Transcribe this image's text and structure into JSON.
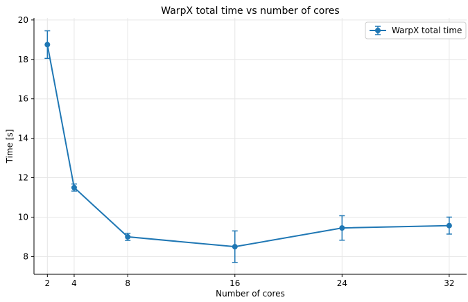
{
  "chart_data": {
    "type": "line",
    "title": "WarpX total time vs number of cores",
    "xlabel": "Number of cores",
    "ylabel": "Time [s]",
    "x": [
      2,
      4,
      8,
      16,
      24,
      32
    ],
    "xlim": [
      1,
      33.3
    ],
    "ylim": [
      7.1,
      20.1
    ],
    "x_ticks": [
      2,
      4,
      8,
      16,
      24,
      32
    ],
    "y_ticks": [
      8,
      10,
      12,
      14,
      16,
      18,
      20
    ],
    "grid": true,
    "legend_position": "top-right",
    "series": [
      {
        "name": "WarpX total time",
        "color": "#1f77b4",
        "y": [
          18.75,
          11.5,
          9.0,
          8.5,
          9.45,
          9.57
        ],
        "yerr": [
          0.7,
          0.18,
          0.18,
          0.8,
          0.62,
          0.43
        ]
      }
    ]
  }
}
